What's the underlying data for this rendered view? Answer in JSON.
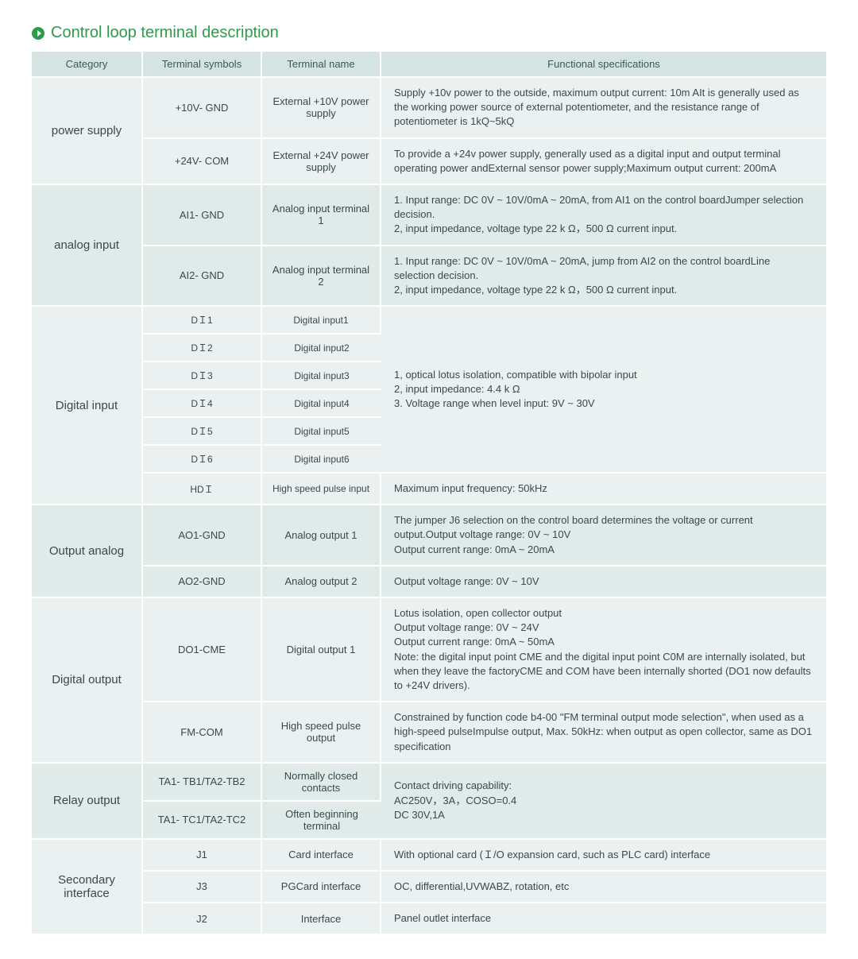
{
  "title": "Control loop terminal description",
  "columns": {
    "c1": "Category",
    "c2": "Terminal symbols",
    "c3": "Terminal name",
    "c4": "Functional specifications"
  },
  "colwidths": {
    "c1": "140px",
    "c2": "150px",
    "c3": "150px",
    "c4": "auto"
  },
  "colors": {
    "header_bg": "#d5e4e2",
    "row_bg_a": "#eaf1f0",
    "row_bg_b": "#e0eae8",
    "accent": "#2e9b4a",
    "text": "#3a4a4a"
  },
  "groups": [
    {
      "category": "power supply",
      "bg": "bg0",
      "rows": [
        {
          "symbol": "+10V- GND",
          "name": "External +10V power supply",
          "spec": "Supply +10v power to the outside, maximum output current: 10m AIt is generally used as the working power source of external potentiometer, and the resistance range of potentiometer is 1kQ~5kQ"
        },
        {
          "symbol": "+24V- COM",
          "name": "External +24V power supply",
          "spec": "To provide a +24v power supply, generally used as a digital input and output terminal operating power andExternal sensor power supply;Maximum output current: 200mA"
        }
      ]
    },
    {
      "category": "analog input",
      "bg": "bg1",
      "rows": [
        {
          "symbol": "AI1- GND",
          "name": "Analog input terminal 1",
          "spec": "1. Input range: DC 0V ~ 10V/0mA ~ 20mA, from AI1 on the control boardJumper selection decision.\n2, input impedance, voltage type 22 k Ω，500 Ω current input."
        },
        {
          "symbol": "AI2- GND",
          "name": "Analog input terminal 2",
          "spec": "1. Input range: DC 0V ~ 10V/0mA ~ 20mA, jump from AI2 on the control boardLine selection decision.\n2, input impedance, voltage type 22 k Ω，500 Ω current input."
        }
      ]
    },
    {
      "category": "Digital input",
      "bg": "bg0",
      "shared_spec": "1, optical lotus isolation, compatible with bipolar input\n2, input impedance: 4.4 k Ω\n3. Voltage range when level input: 9V ~ 30V",
      "rows": [
        {
          "symbol": "DＩ1",
          "name": "Digital input1"
        },
        {
          "symbol": "DＩ2",
          "name": "Digital input2"
        },
        {
          "symbol": "DＩ3",
          "name": "Digital input3"
        },
        {
          "symbol": "DＩ4",
          "name": "Digital input4"
        },
        {
          "symbol": "DＩ5",
          "name": "Digital input5"
        },
        {
          "symbol": "DＩ6",
          "name": "Digital input6"
        },
        {
          "symbol": "HDＩ",
          "name": "High speed pulse input",
          "spec": "Maximum input frequency: 50kHz"
        }
      ]
    },
    {
      "category": "Output analog",
      "bg": "bg1",
      "rows": [
        {
          "symbol": "AO1-GND",
          "name": "Analog output 1",
          "spec": "The jumper J6 selection on the control board determines the voltage or current output.Output voltage range: 0V ~ 10V\nOutput current range: 0mA ~ 20mA"
        },
        {
          "symbol": "AO2-GND",
          "name": "Analog output 2",
          "spec": "Output voltage range: 0V ~ 10V"
        }
      ]
    },
    {
      "category": "Digital output",
      "bg": "bg0",
      "rows": [
        {
          "symbol": "DO1-CME",
          "name": "Digital output 1",
          "spec": "Lotus isolation, open collector output\nOutput voltage range: 0V ~ 24V\nOutput current range: 0mA ~ 50mA\nNote: the digital input point CME and the digital input point C0M are internally isolated, but when they leave the factoryCME and COM have been internally shorted (DO1 now defaults to +24V drivers)."
        },
        {
          "symbol": "FM-COM",
          "name": "High speed pulse output",
          "spec": "Constrained by function code b4-00 \"FM terminal output mode selection\", when used as a high-speed pulseImpulse output, Max. 50kHz: when output as open collector, same as DO1 specification"
        }
      ]
    },
    {
      "category": "Relay output",
      "bg": "bg1",
      "shared_spec": "Contact driving capability:\nAC250V，3A，COSO=0.4\nDC 30V,1A",
      "rows": [
        {
          "symbol": "TA1- TB1/TA2-TB2",
          "name": "Normally closed contacts"
        },
        {
          "symbol": "TA1- TC1/TA2-TC2",
          "name": "Often beginning terminal"
        }
      ]
    },
    {
      "category": "Secondary interface",
      "bg": "bg0",
      "rows": [
        {
          "symbol": "J1",
          "name": "Card interface",
          "spec": "With optional card (Ｉ/O expansion card, such as PLC card) interface"
        },
        {
          "symbol": "J3",
          "name": "PGCard interface",
          "spec": "OC, differential,UVWABZ, rotation, etc"
        },
        {
          "symbol": "J2",
          "name": "Interface",
          "spec": "Panel outlet interface"
        }
      ]
    }
  ]
}
